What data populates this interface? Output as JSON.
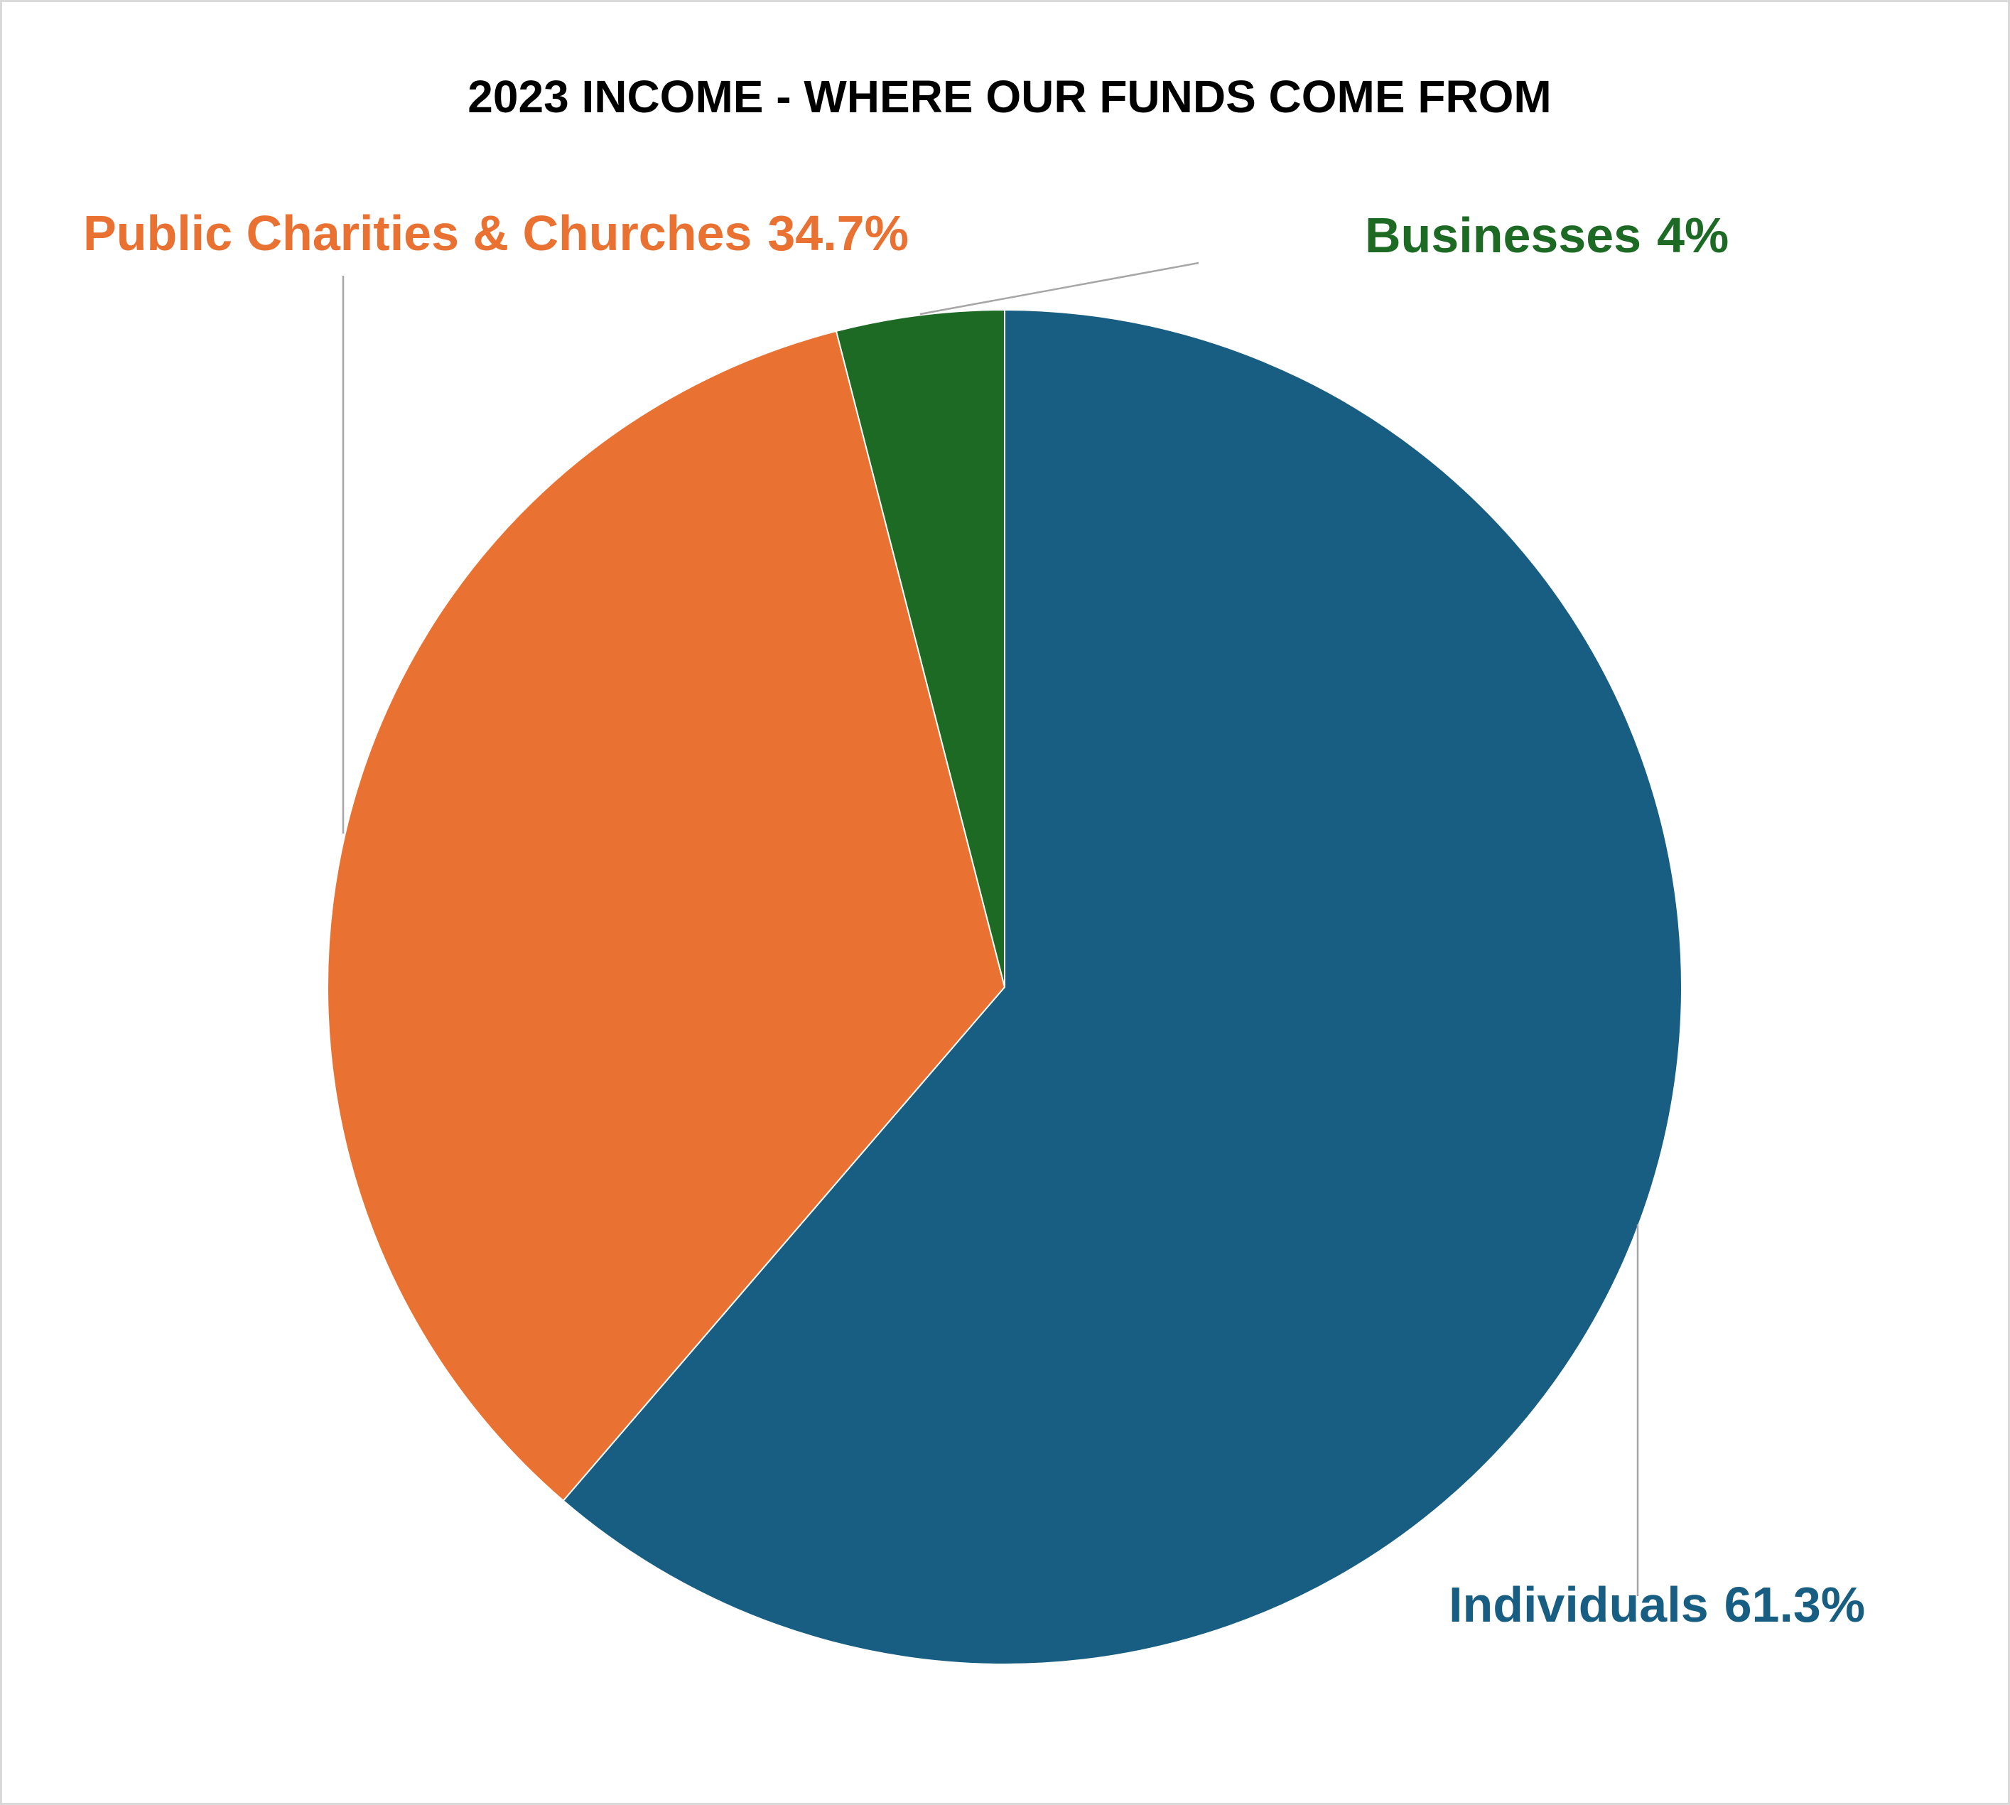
{
  "chart_data": {
    "type": "pie",
    "title": "2023 INCOME - WHERE OUR FUNDS COME FROM",
    "categories": [
      "Individuals",
      "Public Charities & Churches",
      "Businesses"
    ],
    "values": [
      61.3,
      34.7,
      4
    ],
    "value_labels": [
      "61.3%",
      "34.7%",
      "4%"
    ],
    "colors": [
      "#175e82",
      "#e97132",
      "#1c6a23"
    ]
  }
}
